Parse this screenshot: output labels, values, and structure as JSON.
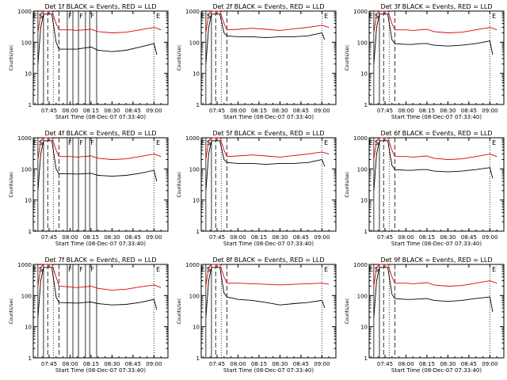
{
  "start_time_label": "Start Time (08-Dec-07 07:33:40)",
  "colors": {
    "events": "#000000",
    "lld": "#dd0000",
    "axes": "#000000"
  },
  "chart_data": [
    {
      "type": "line",
      "title": "Det 1f BLACK = Events, RED = LLD",
      "xlabel": "Start Time (08-Dec-07 07:33:40)",
      "ylabel": "Counts/sec",
      "yscale": "log",
      "xlim": [
        "07:33:40",
        "09:10:00"
      ],
      "ylim": [
        1,
        1000
      ],
      "x_ticks": [
        "07:45",
        "08:00",
        "08:15",
        "08:30",
        "08:45",
        "09:00"
      ],
      "y_ticks": [
        "1",
        "10",
        "100",
        "1000"
      ],
      "marker_labels": [
        "E",
        "S",
        "F",
        "F",
        "F",
        "E"
      ],
      "series": [
        {
          "name": "BLACK = Events",
          "x": [
            "07:37",
            "07:39",
            "07:41",
            "07:47",
            "07:50",
            "07:52",
            "08:00",
            "08:05",
            "08:10",
            "08:15",
            "08:20",
            "08:30",
            "08:40",
            "08:50",
            "09:00",
            "09:02"
          ],
          "values": [
            20,
            300,
            800,
            800,
            100,
            60,
            60,
            60,
            65,
            70,
            55,
            50,
            55,
            70,
            90,
            40
          ]
        },
        {
          "name": "RED = LLD",
          "x": [
            "07:37",
            "07:39",
            "07:41",
            "07:47",
            "07:50",
            "07:52",
            "08:00",
            "08:05",
            "08:10",
            "08:15",
            "08:20",
            "08:30",
            "08:40",
            "08:50",
            "09:00",
            "09:05"
          ],
          "values": [
            200,
            800,
            1000,
            1000,
            400,
            250,
            250,
            240,
            250,
            260,
            220,
            200,
            210,
            250,
            300,
            250
          ]
        }
      ]
    },
    {
      "type": "line",
      "title": "Det 2f BLACK = Events, RED = LLD",
      "xlabel": "Start Time (08-Dec-07 07:33:40)",
      "ylabel": "Counts/sec",
      "yscale": "log",
      "xlim": [
        "07:33:40",
        "09:10:00"
      ],
      "ylim": [
        1,
        1000
      ],
      "x_ticks": [
        "07:45",
        "08:00",
        "08:15",
        "08:30",
        "08:45",
        "09:00"
      ],
      "y_ticks": [
        "1",
        "10",
        "100",
        "1000"
      ],
      "marker_labels": [
        "E",
        "S",
        "E"
      ],
      "series": [
        {
          "name": "BLACK = Events",
          "x": [
            "07:37",
            "07:39",
            "07:41",
            "07:47",
            "07:50",
            "07:52",
            "08:00",
            "08:10",
            "08:20",
            "08:30",
            "08:40",
            "08:50",
            "09:00",
            "09:02"
          ],
          "values": [
            20,
            300,
            800,
            800,
            200,
            160,
            150,
            150,
            140,
            150,
            150,
            160,
            200,
            120
          ]
        },
        {
          "name": "RED = LLD",
          "x": [
            "07:37",
            "07:39",
            "07:41",
            "07:47",
            "07:50",
            "07:52",
            "08:00",
            "08:10",
            "08:20",
            "08:30",
            "08:40",
            "08:50",
            "09:00",
            "09:05"
          ],
          "values": [
            200,
            800,
            1000,
            1000,
            400,
            250,
            260,
            280,
            260,
            240,
            270,
            300,
            350,
            300
          ]
        }
      ]
    },
    {
      "type": "line",
      "title": "Det 3f BLACK = Events, RED = LLD",
      "xlabel": "Start Time (08-Dec-07 07:33:40)",
      "ylabel": "Counts/sec",
      "yscale": "log",
      "xlim": [
        "07:33:40",
        "09:10:00"
      ],
      "ylim": [
        1,
        1000
      ],
      "x_ticks": [
        "07:45",
        "08:00",
        "08:15",
        "08:30",
        "08:45",
        "09:00"
      ],
      "y_ticks": [
        "1",
        "10",
        "100",
        "1000"
      ],
      "marker_labels": [
        "E",
        "S",
        "E"
      ],
      "series": [
        {
          "name": "BLACK = Events",
          "x": [
            "07:37",
            "07:39",
            "07:41",
            "07:47",
            "07:50",
            "07:52",
            "08:00",
            "08:05",
            "08:10",
            "08:15",
            "08:20",
            "08:30",
            "08:40",
            "08:50",
            "09:00",
            "09:02"
          ],
          "values": [
            20,
            300,
            800,
            800,
            120,
            90,
            85,
            85,
            90,
            90,
            80,
            75,
            80,
            90,
            110,
            40
          ]
        },
        {
          "name": "RED = LLD",
          "x": [
            "07:37",
            "07:39",
            "07:41",
            "07:47",
            "07:50",
            "07:52",
            "08:00",
            "08:05",
            "08:10",
            "08:15",
            "08:20",
            "08:30",
            "08:40",
            "08:50",
            "09:00",
            "09:05"
          ],
          "values": [
            200,
            800,
            1000,
            1000,
            400,
            250,
            250,
            240,
            250,
            260,
            220,
            200,
            210,
            250,
            300,
            250
          ]
        }
      ]
    },
    {
      "type": "line",
      "title": "Det 4f BLACK = Events, RED = LLD",
      "xlabel": "Start Time (08-Dec-07 07:33:40)",
      "ylabel": "Counts/sec",
      "yscale": "log",
      "xlim": [
        "07:33:40",
        "09:10:00"
      ],
      "ylim": [
        1,
        1000
      ],
      "x_ticks": [
        "07:45",
        "08:00",
        "08:15",
        "08:30",
        "08:45",
        "09:00"
      ],
      "y_ticks": [
        "1",
        "10",
        "100",
        "1000"
      ],
      "marker_labels": [
        "E",
        "S",
        "F",
        "F",
        "F",
        "E"
      ],
      "series": [
        {
          "name": "BLACK = Events",
          "x": [
            "07:37",
            "07:39",
            "07:41",
            "07:47",
            "07:50",
            "07:52",
            "08:00",
            "08:05",
            "08:10",
            "08:15",
            "08:20",
            "08:30",
            "08:40",
            "08:50",
            "09:00",
            "09:02"
          ],
          "values": [
            20,
            300,
            800,
            800,
            100,
            70,
            70,
            68,
            70,
            72,
            62,
            58,
            62,
            72,
            90,
            40
          ]
        },
        {
          "name": "RED = LLD",
          "x": [
            "07:37",
            "07:39",
            "07:41",
            "07:47",
            "07:50",
            "07:52",
            "08:00",
            "08:05",
            "08:10",
            "08:15",
            "08:20",
            "08:30",
            "08:40",
            "08:50",
            "09:00",
            "09:05"
          ],
          "values": [
            200,
            800,
            1000,
            1000,
            400,
            250,
            250,
            240,
            250,
            260,
            220,
            200,
            210,
            250,
            300,
            250
          ]
        }
      ]
    },
    {
      "type": "line",
      "title": "Det 5f BLACK = Events, RED = LLD",
      "xlabel": "Start Time (08-Dec-07 07:33:40)",
      "ylabel": "Counts/sec",
      "yscale": "log",
      "xlim": [
        "07:33:40",
        "09:10:00"
      ],
      "ylim": [
        1,
        1000
      ],
      "x_ticks": [
        "07:45",
        "08:00",
        "08:15",
        "08:30",
        "08:45",
        "09:00"
      ],
      "y_ticks": [
        "1",
        "10",
        "100",
        "1000"
      ],
      "marker_labels": [
        "E",
        "S",
        "E"
      ],
      "series": [
        {
          "name": "BLACK = Events",
          "x": [
            "07:37",
            "07:39",
            "07:41",
            "07:47",
            "07:50",
            "07:52",
            "08:00",
            "08:10",
            "08:20",
            "08:30",
            "08:40",
            "08:50",
            "09:00",
            "09:02"
          ],
          "values": [
            20,
            300,
            800,
            800,
            200,
            160,
            150,
            150,
            140,
            150,
            150,
            160,
            200,
            120
          ]
        },
        {
          "name": "RED = LLD",
          "x": [
            "07:37",
            "07:39",
            "07:41",
            "07:47",
            "07:50",
            "07:52",
            "08:00",
            "08:10",
            "08:20",
            "08:30",
            "08:40",
            "08:50",
            "09:00",
            "09:05"
          ],
          "values": [
            200,
            800,
            1000,
            1000,
            400,
            250,
            260,
            280,
            260,
            240,
            270,
            300,
            350,
            300
          ]
        }
      ]
    },
    {
      "type": "line",
      "title": "Det 6f BLACK = Events, RED = LLD",
      "xlabel": "Start Time (08-Dec-07 07:33:40)",
      "ylabel": "Counts/sec",
      "yscale": "log",
      "xlim": [
        "07:33:40",
        "09:10:00"
      ],
      "ylim": [
        1,
        1000
      ],
      "x_ticks": [
        "07:45",
        "08:00",
        "08:15",
        "08:30",
        "08:45",
        "09:00"
      ],
      "y_ticks": [
        "1",
        "10",
        "100",
        "1000"
      ],
      "marker_labels": [
        "E",
        "S",
        "E"
      ],
      "series": [
        {
          "name": "BLACK = Events",
          "x": [
            "07:37",
            "07:39",
            "07:41",
            "07:47",
            "07:50",
            "07:52",
            "08:00",
            "08:05",
            "08:10",
            "08:15",
            "08:20",
            "08:30",
            "08:40",
            "08:50",
            "09:00",
            "09:02"
          ],
          "values": [
            20,
            300,
            800,
            800,
            130,
            95,
            90,
            90,
            95,
            95,
            85,
            80,
            85,
            95,
            110,
            50
          ]
        },
        {
          "name": "RED = LLD",
          "x": [
            "07:37",
            "07:39",
            "07:41",
            "07:47",
            "07:50",
            "07:52",
            "08:00",
            "08:05",
            "08:10",
            "08:15",
            "08:20",
            "08:30",
            "08:40",
            "08:50",
            "09:00",
            "09:05"
          ],
          "values": [
            200,
            800,
            1000,
            1000,
            400,
            250,
            250,
            240,
            250,
            260,
            220,
            200,
            210,
            250,
            300,
            250
          ]
        }
      ]
    },
    {
      "type": "line",
      "title": "Det 7f BLACK = Events, RED = LLD",
      "xlabel": "Start Time (08-Dec-07 07:33:40)",
      "ylabel": "Counts/sec",
      "yscale": "log",
      "xlim": [
        "07:33:40",
        "09:10:00"
      ],
      "ylim": [
        1,
        1000
      ],
      "x_ticks": [
        "07:45",
        "08:00",
        "08:15",
        "08:30",
        "08:45",
        "09:00"
      ],
      "y_ticks": [
        "1",
        "10",
        "100",
        "1000"
      ],
      "marker_labels": [
        "E",
        "S",
        "F",
        "F",
        "F",
        "E"
      ],
      "series": [
        {
          "name": "BLACK = Events",
          "x": [
            "07:37",
            "07:39",
            "07:41",
            "07:47",
            "07:50",
            "07:52",
            "08:00",
            "08:05",
            "08:10",
            "08:15",
            "08:20",
            "08:30",
            "08:40",
            "08:50",
            "09:00",
            "09:02"
          ],
          "values": [
            20,
            300,
            800,
            800,
            90,
            60,
            58,
            57,
            60,
            62,
            55,
            50,
            52,
            60,
            75,
            35
          ]
        },
        {
          "name": "RED = LLD",
          "x": [
            "07:37",
            "07:39",
            "07:41",
            "07:47",
            "07:50",
            "07:52",
            "08:00",
            "08:05",
            "08:10",
            "08:15",
            "08:20",
            "08:30",
            "08:40",
            "08:50",
            "09:00",
            "09:05"
          ],
          "values": [
            200,
            800,
            1000,
            1000,
            400,
            200,
            190,
            180,
            190,
            200,
            170,
            150,
            160,
            190,
            220,
            180
          ]
        }
      ]
    },
    {
      "type": "line",
      "title": "Det 8f BLACK = Events, RED = LLD",
      "xlabel": "Start Time (08-Dec-07 07:33:40)",
      "ylabel": "Counts/sec",
      "yscale": "log",
      "xlim": [
        "07:33:40",
        "09:10:00"
      ],
      "ylim": [
        1,
        1000
      ],
      "x_ticks": [
        "07:45",
        "08:00",
        "08:15",
        "08:30",
        "08:45",
        "09:00"
      ],
      "y_ticks": [
        "1",
        "10",
        "100",
        "1000"
      ],
      "marker_labels": [
        "E",
        "S",
        "E"
      ],
      "series": [
        {
          "name": "BLACK = Events",
          "x": [
            "07:37",
            "07:39",
            "07:41",
            "07:47",
            "07:50",
            "07:52",
            "08:00",
            "08:10",
            "08:20",
            "08:30",
            "08:40",
            "08:50",
            "09:00",
            "09:02"
          ],
          "values": [
            20,
            300,
            800,
            800,
            120,
            90,
            75,
            70,
            60,
            50,
            55,
            60,
            70,
            40
          ]
        },
        {
          "name": "RED = LLD",
          "x": [
            "07:37",
            "07:39",
            "07:41",
            "07:47",
            "07:50",
            "07:52",
            "08:00",
            "08:10",
            "08:20",
            "08:30",
            "08:40",
            "08:50",
            "09:00",
            "09:05"
          ],
          "values": [
            200,
            800,
            1000,
            1000,
            400,
            250,
            250,
            240,
            230,
            220,
            230,
            240,
            250,
            230
          ]
        }
      ]
    },
    {
      "type": "line",
      "title": "Det 9f BLACK = Events, RED = LLD",
      "xlabel": "Start Time (08-Dec-07 07:33:40)",
      "ylabel": "Counts/sec",
      "yscale": "log",
      "xlim": [
        "07:33:40",
        "09:10:00"
      ],
      "ylim": [
        1,
        1000
      ],
      "x_ticks": [
        "07:45",
        "08:00",
        "08:15",
        "08:30",
        "08:45",
        "09:00"
      ],
      "y_ticks": [
        "1",
        "10",
        "100",
        "1000"
      ],
      "marker_labels": [
        "E",
        "S",
        "E"
      ],
      "series": [
        {
          "name": "BLACK = Events",
          "x": [
            "07:37",
            "07:39",
            "07:41",
            "07:47",
            "07:50",
            "07:52",
            "08:00",
            "08:05",
            "08:10",
            "08:15",
            "08:20",
            "08:30",
            "08:40",
            "08:50",
            "09:00",
            "09:02"
          ],
          "values": [
            20,
            300,
            800,
            800,
            110,
            80,
            75,
            75,
            78,
            80,
            70,
            65,
            70,
            80,
            90,
            30
          ]
        },
        {
          "name": "RED = LLD",
          "x": [
            "07:37",
            "07:39",
            "07:41",
            "07:47",
            "07:50",
            "07:52",
            "08:00",
            "08:05",
            "08:10",
            "08:15",
            "08:20",
            "08:30",
            "08:40",
            "08:50",
            "09:00",
            "09:05"
          ],
          "values": [
            200,
            800,
            1000,
            1000,
            400,
            250,
            250,
            240,
            250,
            260,
            220,
            200,
            210,
            250,
            300,
            250
          ]
        }
      ]
    }
  ]
}
